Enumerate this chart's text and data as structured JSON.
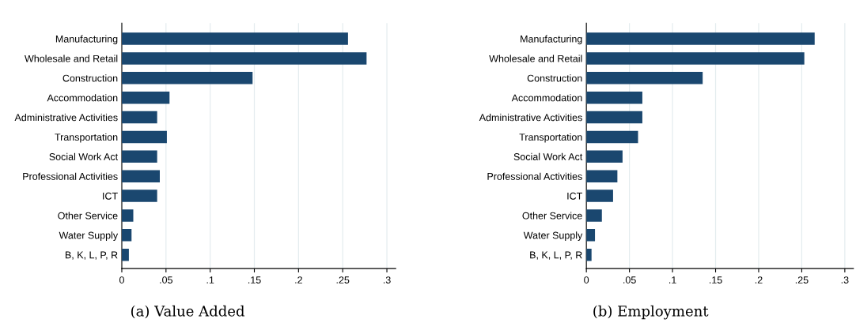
{
  "chart_data": [
    {
      "type": "bar",
      "orientation": "horizontal",
      "categories": [
        "Manufacturing",
        "Wholesale and Retail",
        "Construction",
        "Accommodation",
        "Administrative Activities",
        "Transportation",
        "Social Work Act",
        "Professional Activities",
        "ICT",
        "Other Service",
        "Water Supply",
        "B, K, L, P, R"
      ],
      "values": [
        0.256,
        0.277,
        0.148,
        0.054,
        0.04,
        0.051,
        0.04,
        0.043,
        0.04,
        0.013,
        0.011,
        0.008
      ],
      "color": "#1a476f",
      "xlim": [
        0,
        0.31
      ],
      "xticks": [
        0,
        {
          "value": 0.05,
          "label": ".05"
        },
        {
          "value": 0.1,
          "label": ".1"
        },
        {
          "value": 0.15,
          "label": ".15"
        },
        {
          "value": 0.2,
          "label": ".2"
        },
        {
          "value": 0.25,
          "label": ".25"
        },
        {
          "value": 0.3,
          "label": ".3"
        }
      ],
      "grid": "x",
      "annotations": [
        "(a) Value Added"
      ]
    },
    {
      "type": "bar",
      "orientation": "horizontal",
      "categories": [
        "Manufacturing",
        "Wholesale and Retail",
        "Construction",
        "Accommodation",
        "Administrative Activities",
        "Transportation",
        "Social Work Act",
        "Professional Activities",
        "ICT",
        "Other Service",
        "Water Supply",
        "B, K, L, P, R"
      ],
      "values": [
        0.265,
        0.253,
        0.135,
        0.065,
        0.065,
        0.06,
        0.042,
        0.036,
        0.031,
        0.018,
        0.01,
        0.006
      ],
      "color": "#1a476f",
      "xlim": [
        0,
        0.31
      ],
      "xticks": [
        0,
        {
          "value": 0.05,
          "label": ".05"
        },
        {
          "value": 0.1,
          "label": ".1"
        },
        {
          "value": 0.15,
          "label": ".15"
        },
        {
          "value": 0.2,
          "label": ".2"
        },
        {
          "value": 0.25,
          "label": ".25"
        },
        {
          "value": 0.3,
          "label": ".3"
        }
      ],
      "grid": "x",
      "annotations": [
        "(b) Employment"
      ]
    }
  ]
}
